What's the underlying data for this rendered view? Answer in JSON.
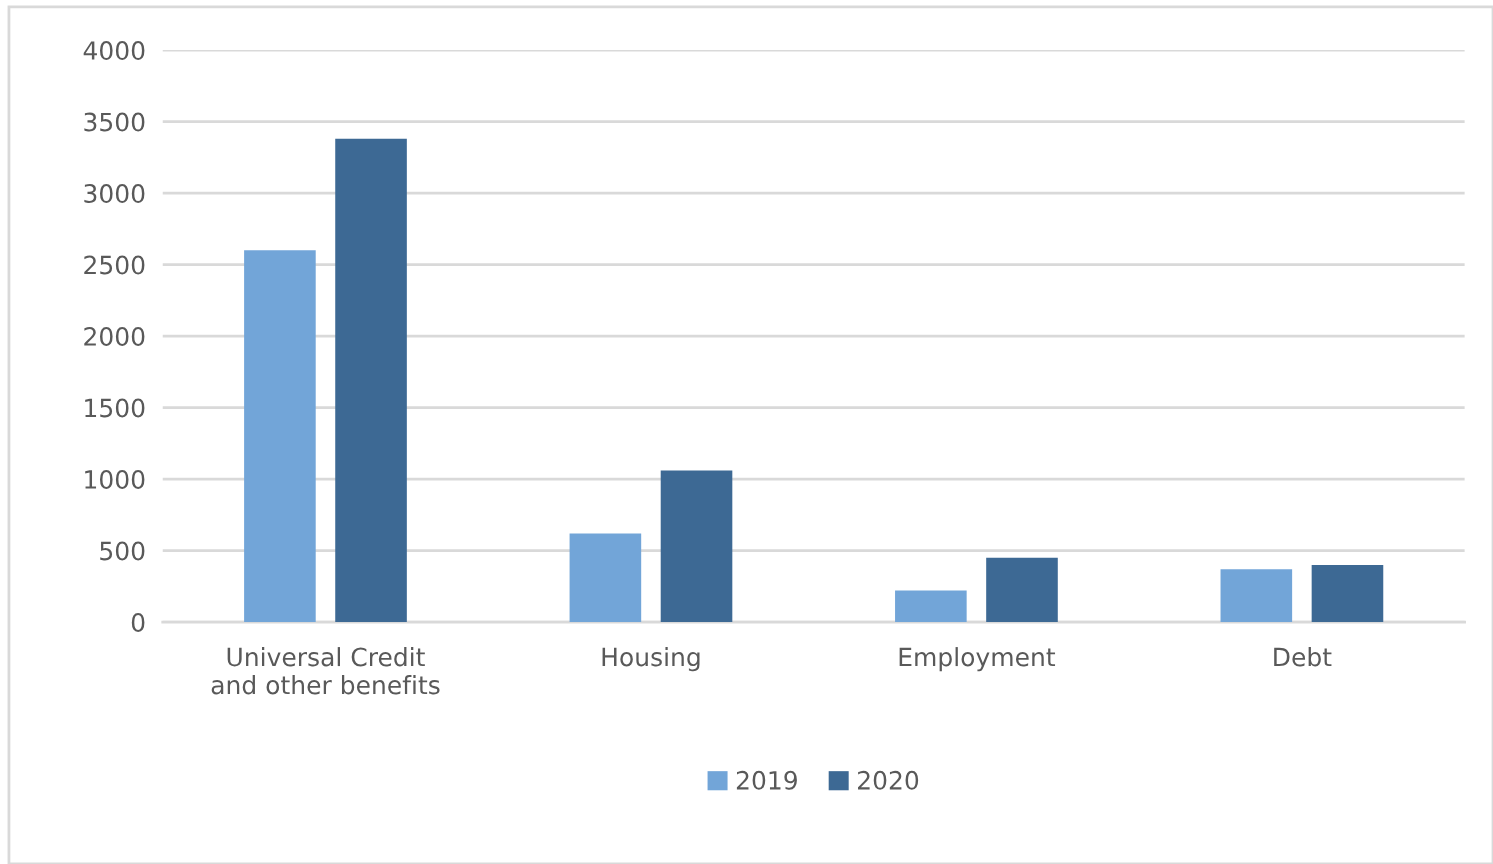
{
  "chart_data": {
    "type": "bar",
    "categories": [
      "Universal Credit\nand other benefits",
      "Housing",
      "Employment",
      "Debt"
    ],
    "series": [
      {
        "name": "2019",
        "color": "#72a5d8",
        "values": [
          2600,
          620,
          220,
          370
        ]
      },
      {
        "name": "2020",
        "color": "#3d6994",
        "values": [
          3380,
          1060,
          450,
          400
        ]
      }
    ],
    "ylim": [
      0,
      4000
    ],
    "yticks": [
      0,
      500,
      1000,
      1500,
      2000,
      2500,
      3000,
      3500,
      4000
    ],
    "grid": "y",
    "legend": "bottom"
  }
}
